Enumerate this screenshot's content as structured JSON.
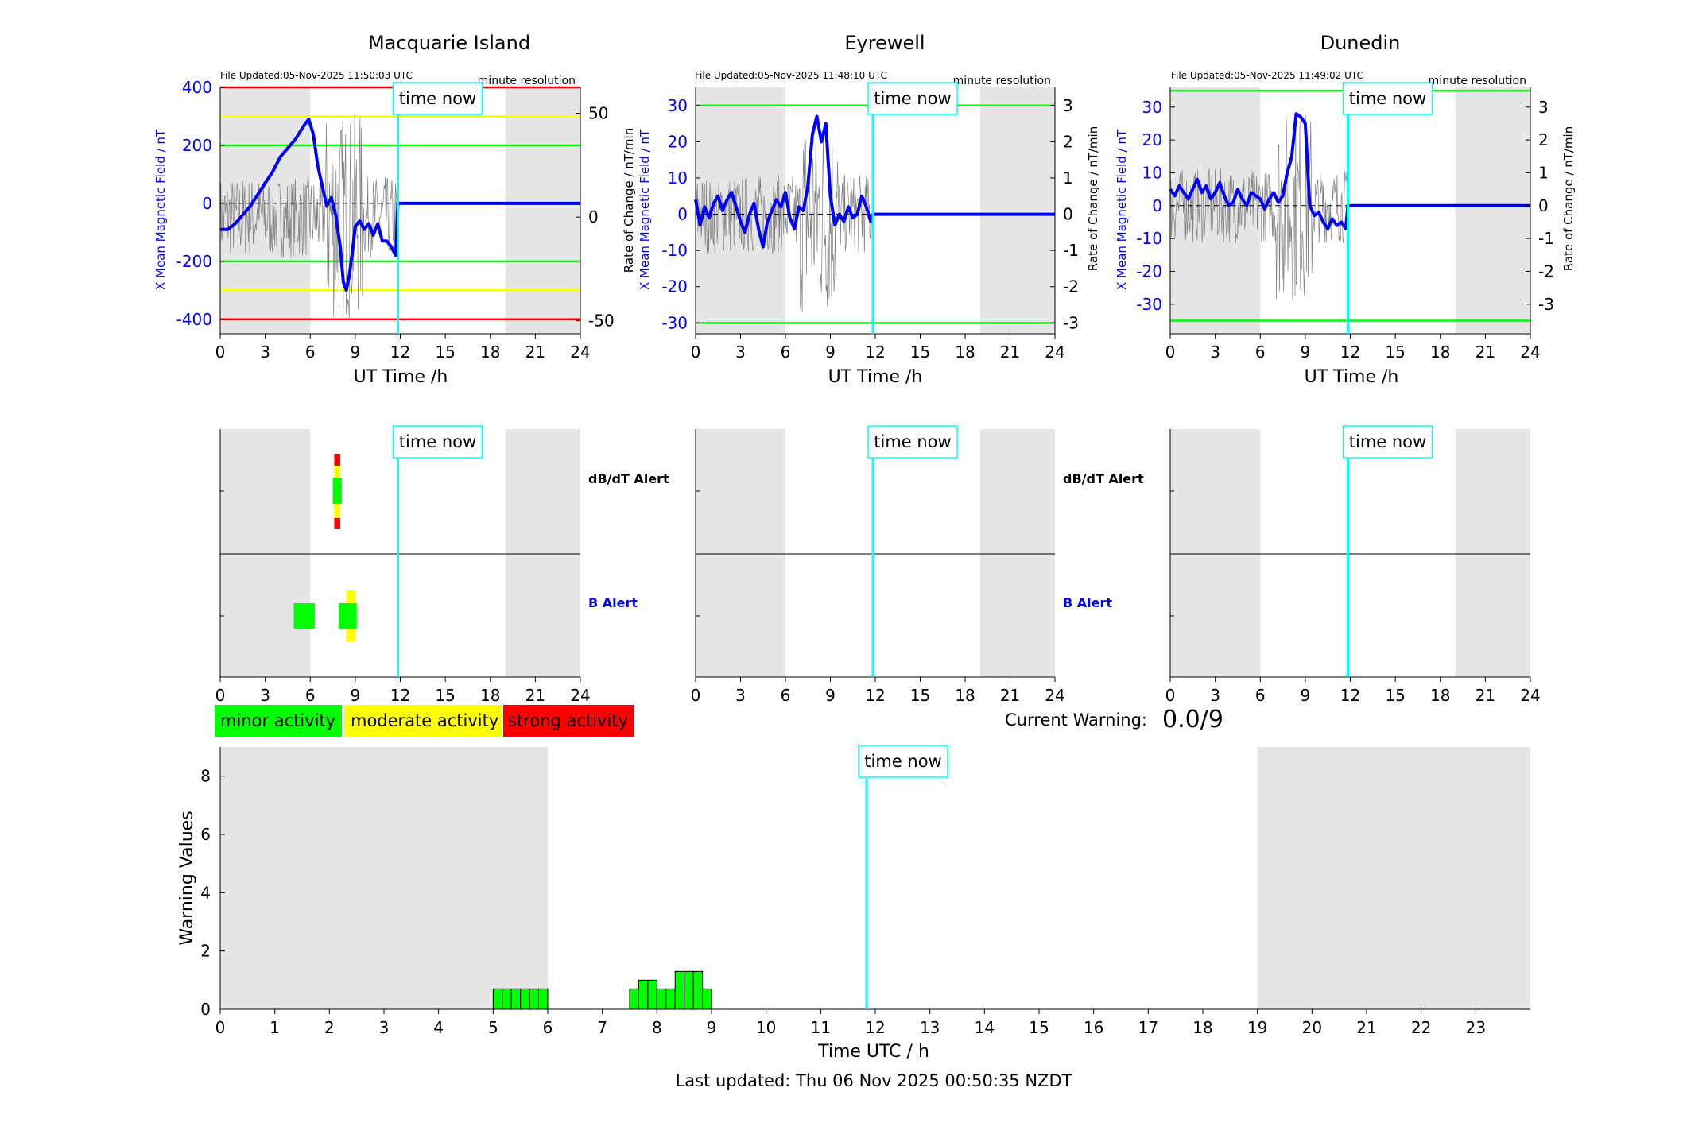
{
  "footer": {
    "last_updated": "Last updated: Thu 06 Nov 2025 00:50:35 NZDT"
  },
  "legend": {
    "minor": "minor activity",
    "moderate": "moderate activity",
    "strong": "strong activity"
  },
  "current_warning": {
    "label": "Current Warning:",
    "value": "0.0/9"
  },
  "time_now_label": "time now",
  "time_now_hour": 11.84,
  "colors": {
    "minor": "#00ff00",
    "moderate": "#ffff00",
    "strong": "#ff0000",
    "now_line": "#00ffff",
    "night_shade": "#e6e6e6",
    "field": "#0000ff",
    "rate": "#808080"
  },
  "stations": [
    {
      "title": "Macquarie Island",
      "file_updated": "File Updated:05-Nov-2025 11:50:03 UTC",
      "resolution": "minute resolution",
      "ylabel": "X Mean Magnetic Field / nT",
      "ylabel_right": "Rate of Change / nT/min",
      "xlabel": "UT Time /h",
      "yticks": [
        "-400",
        "-200",
        "0",
        "200",
        "400"
      ],
      "yticks_right": [
        "-50",
        "0",
        "50"
      ],
      "alert_label_rate": "dB/dT Alert",
      "alert_label_field": "B Alert"
    },
    {
      "title": "Eyrewell",
      "file_updated": "File Updated:05-Nov-2025 11:48:10 UTC",
      "resolution": "minute resolution",
      "ylabel": "X Mean Magnetic Field / nT",
      "ylabel_right": "Rate of Change / nT/min",
      "xlabel": "UT Time /h",
      "yticks": [
        "-30",
        "-20",
        "-10",
        "0",
        "10",
        "20",
        "30"
      ],
      "yticks_right": [
        "-3",
        "-2",
        "-1",
        "0",
        "1",
        "2",
        "3"
      ],
      "alert_label_rate": "dB/dT Alert",
      "alert_label_field": "B Alert"
    },
    {
      "title": "Dunedin",
      "file_updated": "File Updated:05-Nov-2025 11:49:02 UTC",
      "resolution": "minute resolution",
      "ylabel": "X Mean Magnetic Field / nT",
      "ylabel_right": "Rate of Change / nT/min",
      "xlabel": "UT Time /h",
      "yticks": [
        "-30",
        "-20",
        "-10",
        "0",
        "10",
        "20",
        "30"
      ],
      "yticks_right": [
        "-3",
        "-2",
        "-1",
        "0",
        "1",
        "2",
        "3"
      ],
      "alert_label_rate": "dB/dT Alert",
      "alert_label_field": "B Alert"
    }
  ],
  "warning_chart": {
    "ylabel": "Warning Values",
    "xlabel": "Time UTC / h"
  },
  "chart_data": [
    {
      "type": "line",
      "station": "Macquarie Island",
      "xlim": [
        0,
        24
      ],
      "ylim": [
        -450,
        400
      ],
      "ylim_right": [
        -56.25,
        62.5
      ],
      "xticks": [
        0,
        3,
        6,
        9,
        12,
        15,
        18,
        21,
        24
      ],
      "night_shading_hours": [
        [
          0,
          6
        ],
        [
          19,
          24
        ]
      ],
      "threshold_lines": [
        {
          "value": 400,
          "color": "#ff0000"
        },
        {
          "value": 300,
          "color": "#ffff00"
        },
        {
          "value": 200,
          "color": "#00ff00"
        },
        {
          "value": -200,
          "color": "#00ff00"
        },
        {
          "value": -300,
          "color": "#ffff00"
        },
        {
          "value": -400,
          "color": "#ff0000"
        }
      ],
      "series": [
        {
          "x": [
            0,
            0.5,
            1,
            1.5,
            2,
            2.5,
            3,
            3.5,
            4,
            4.5,
            5,
            5.3,
            5.6,
            5.9,
            6.2,
            6.5,
            6.8,
            7.1,
            7.4,
            7.7,
            8.0,
            8.2,
            8.4,
            8.6,
            8.8,
            9.0,
            9.3,
            9.6,
            9.9,
            10.2,
            10.5,
            10.8,
            11.1,
            11.4,
            11.7,
            11.84,
            24
          ],
          "y": [
            -90,
            -90,
            -70,
            -40,
            -10,
            30,
            70,
            110,
            160,
            190,
            220,
            245,
            270,
            290,
            240,
            130,
            60,
            -10,
            20,
            -40,
            -150,
            -270,
            -300,
            -250,
            -170,
            -80,
            -60,
            -90,
            -70,
            -110,
            -70,
            -130,
            -130,
            -150,
            -180,
            0,
            0
          ]
        }
      ]
    },
    {
      "type": "line",
      "station": "Eyrewell",
      "xlim": [
        0,
        24
      ],
      "ylim": [
        -33,
        35
      ],
      "ylim_right": [
        -3.3,
        3.5
      ],
      "xticks": [
        0,
        3,
        6,
        9,
        12,
        15,
        18,
        21,
        24
      ],
      "night_shading_hours": [
        [
          0,
          6
        ],
        [
          19,
          24
        ]
      ],
      "threshold_lines": [
        {
          "value": 30,
          "color": "#00ff00"
        },
        {
          "value": -30,
          "color": "#00ff00"
        }
      ],
      "series": [
        {
          "x": [
            0,
            0.3,
            0.6,
            0.9,
            1.2,
            1.5,
            1.8,
            2.1,
            2.4,
            2.7,
            3.0,
            3.3,
            3.6,
            3.9,
            4.2,
            4.5,
            4.8,
            5.1,
            5.4,
            5.7,
            6.0,
            6.3,
            6.6,
            6.9,
            7.2,
            7.5,
            7.8,
            8.1,
            8.4,
            8.7,
            9.0,
            9.3,
            9.6,
            9.9,
            10.2,
            10.5,
            10.8,
            11.1,
            11.4,
            11.7,
            11.84,
            24
          ],
          "y": [
            4,
            -3,
            2,
            -1,
            3,
            5,
            1,
            4,
            6,
            2,
            -2,
            -5,
            0,
            3,
            -4,
            -9,
            -2,
            1,
            4,
            2,
            6,
            -1,
            -4,
            2,
            1,
            8,
            22,
            27,
            20,
            25,
            5,
            -3,
            0,
            -2,
            2,
            -1,
            0,
            5,
            2,
            -2,
            0,
            0
          ]
        }
      ]
    },
    {
      "type": "line",
      "station": "Dunedin",
      "xlim": [
        0,
        24
      ],
      "ylim": [
        -39,
        36
      ],
      "ylim_right": [
        -3.9,
        3.6
      ],
      "xticks": [
        0,
        3,
        6,
        9,
        12,
        15,
        18,
        21,
        24
      ],
      "night_shading_hours": [
        [
          0,
          6
        ],
        [
          19,
          24
        ]
      ],
      "threshold_lines": [
        {
          "value": 35,
          "color": "#00ff00"
        },
        {
          "value": -35,
          "color": "#00ff00"
        }
      ],
      "series": [
        {
          "x": [
            0,
            0.3,
            0.6,
            0.9,
            1.2,
            1.5,
            1.8,
            2.1,
            2.4,
            2.7,
            3.0,
            3.3,
            3.6,
            3.9,
            4.2,
            4.5,
            4.8,
            5.1,
            5.4,
            5.7,
            6.0,
            6.3,
            6.6,
            6.9,
            7.2,
            7.5,
            7.8,
            8.1,
            8.4,
            8.7,
            9.0,
            9.3,
            9.6,
            9.9,
            10.2,
            10.5,
            10.8,
            11.1,
            11.4,
            11.7,
            11.84,
            24
          ],
          "y": [
            5,
            3,
            6,
            4,
            2,
            5,
            8,
            4,
            6,
            2,
            4,
            7,
            3,
            0,
            1,
            5,
            2,
            0,
            4,
            3,
            2,
            -1,
            2,
            4,
            1,
            3,
            10,
            15,
            28,
            27,
            25,
            0,
            -3,
            -2,
            -5,
            -7,
            -4,
            -6,
            -5,
            -7,
            0,
            0
          ]
        }
      ]
    },
    {
      "type": "bar",
      "title": "",
      "xlim": [
        0,
        24
      ],
      "ylim": [
        0,
        9
      ],
      "xticks": [
        0,
        1,
        2,
        3,
        4,
        5,
        6,
        7,
        8,
        9,
        10,
        11,
        12,
        13,
        14,
        15,
        16,
        17,
        18,
        19,
        20,
        21,
        22,
        23
      ],
      "yticks": [
        0,
        2,
        4,
        6,
        8
      ],
      "night_shading_hours": [
        [
          0,
          6
        ],
        [
          19,
          24
        ]
      ],
      "bar_width_hours": 0.1667,
      "x": [
        5.0,
        5.167,
        5.333,
        5.5,
        5.667,
        5.833,
        7.5,
        7.667,
        7.833,
        8.0,
        8.167,
        8.333,
        8.5,
        8.667,
        8.833
      ],
      "values": [
        0.7,
        0.7,
        0.7,
        0.7,
        0.7,
        0.7,
        0.7,
        1.0,
        1.0,
        0.7,
        0.7,
        1.3,
        1.3,
        1.3,
        0.7
      ]
    }
  ]
}
